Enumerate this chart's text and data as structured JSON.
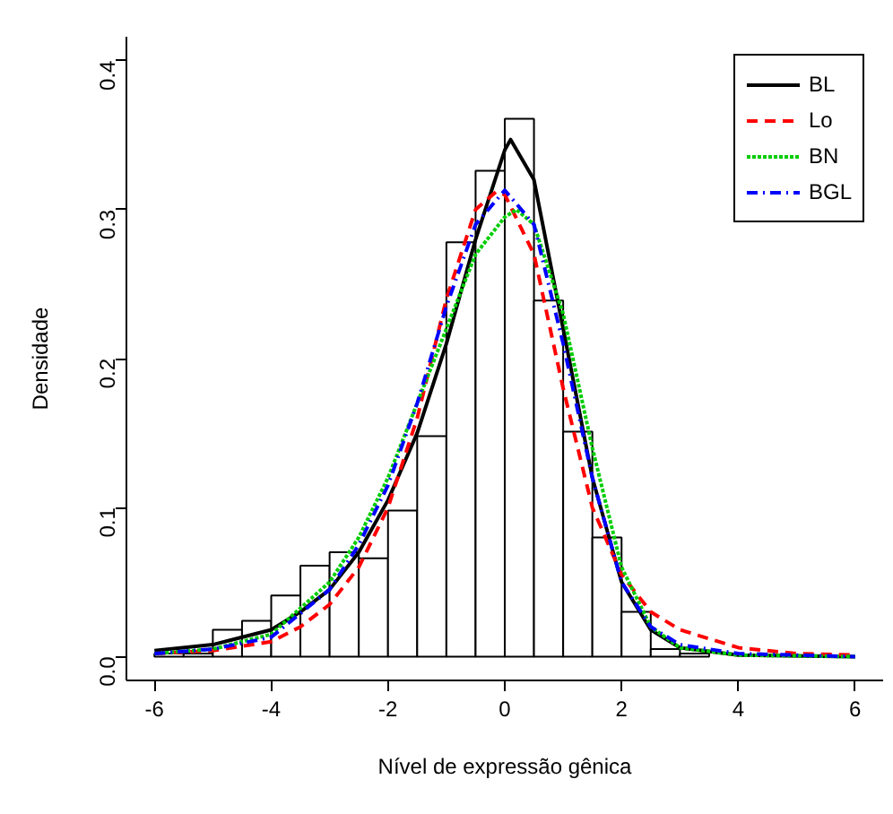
{
  "chart_data": {
    "type": "histogram",
    "xlabel": "Nível de expressão gênica",
    "ylabel": "Densidade",
    "bins": [
      -6,
      -5.5,
      -5,
      -4.5,
      -4,
      -3.5,
      -3,
      -2.5,
      -2,
      -1.5,
      -1,
      -0.5,
      0,
      0.5,
      1,
      1.5,
      2,
      2.5,
      3,
      3.5
    ],
    "values": [
      0.002,
      0.002,
      0.018,
      0.024,
      0.041,
      0.061,
      0.07,
      0.066,
      0.098,
      0.148,
      0.278,
      0.326,
      0.361,
      0.239,
      0.151,
      0.08,
      0.03,
      0.005,
      0.002
    ],
    "color": "#ffffff",
    "series": [
      {
        "name": "BL",
        "type": "line",
        "color": "#000000",
        "line_style": "solid",
        "x": [
          -6,
          -5,
          -4,
          -3.5,
          -3,
          -2.5,
          -2,
          -1.5,
          -1,
          -0.5,
          0,
          0.1,
          0.5,
          1,
          1.5,
          2,
          2.5,
          3,
          4,
          6
        ],
        "values": [
          0.004,
          0.008,
          0.018,
          0.03,
          0.045,
          0.07,
          0.105,
          0.15,
          0.21,
          0.28,
          0.34,
          0.347,
          0.32,
          0.22,
          0.12,
          0.05,
          0.018,
          0.006,
          0.001,
          0
        ]
      },
      {
        "name": "Lo",
        "type": "line",
        "color": "#ff0000",
        "line_style": "dashed",
        "x": [
          -6,
          -5,
          -4,
          -3.5,
          -3,
          -2.5,
          -2,
          -1.5,
          -1,
          -0.5,
          -0.15,
          0,
          0.5,
          1,
          1.5,
          2,
          2.5,
          3,
          4,
          5,
          6
        ],
        "values": [
          0.002,
          0.004,
          0.01,
          0.02,
          0.035,
          0.06,
          0.1,
          0.16,
          0.24,
          0.3,
          0.312,
          0.31,
          0.27,
          0.18,
          0.1,
          0.055,
          0.03,
          0.018,
          0.006,
          0.002,
          0.001
        ]
      },
      {
        "name": "BN",
        "type": "line",
        "color": "#00cd00",
        "line_style": "dotted",
        "x": [
          -6,
          -5,
          -4,
          -3,
          -2.5,
          -2,
          -1.5,
          -1,
          -0.5,
          0,
          0.2,
          0.5,
          1,
          1.5,
          2,
          2.5,
          3,
          4,
          6
        ],
        "values": [
          0.002,
          0.005,
          0.015,
          0.05,
          0.08,
          0.12,
          0.17,
          0.22,
          0.27,
          0.295,
          0.3,
          0.29,
          0.23,
          0.14,
          0.06,
          0.02,
          0.006,
          0.001,
          0
        ]
      },
      {
        "name": "BGL",
        "type": "line",
        "color": "#0000ff",
        "line_style": "dashdot",
        "x": [
          -6,
          -5,
          -4,
          -3,
          -2.5,
          -2,
          -1.5,
          -1,
          -0.5,
          0,
          0.5,
          1,
          1.5,
          2,
          2.5,
          3,
          4,
          6
        ],
        "values": [
          0.002,
          0.005,
          0.013,
          0.045,
          0.075,
          0.115,
          0.17,
          0.235,
          0.29,
          0.313,
          0.29,
          0.21,
          0.12,
          0.05,
          0.02,
          0.008,
          0.002,
          0
        ]
      }
    ],
    "xlim": [
      -6.48,
      6.48
    ],
    "ylim": [
      -0.016,
      0.416
    ],
    "xticks": [
      -6,
      -4,
      -2,
      0,
      2,
      4,
      6
    ],
    "yticks": [
      {
        "value": 0,
        "label": "0.0"
      },
      {
        "value": 0.1,
        "label": "0.1"
      },
      {
        "value": 0.2,
        "label": "0.2"
      },
      {
        "value": 0.3,
        "label": "0.3"
      },
      {
        "value": 0.4,
        "label": "0.4"
      }
    ],
    "grid": false,
    "legend": "top right"
  }
}
